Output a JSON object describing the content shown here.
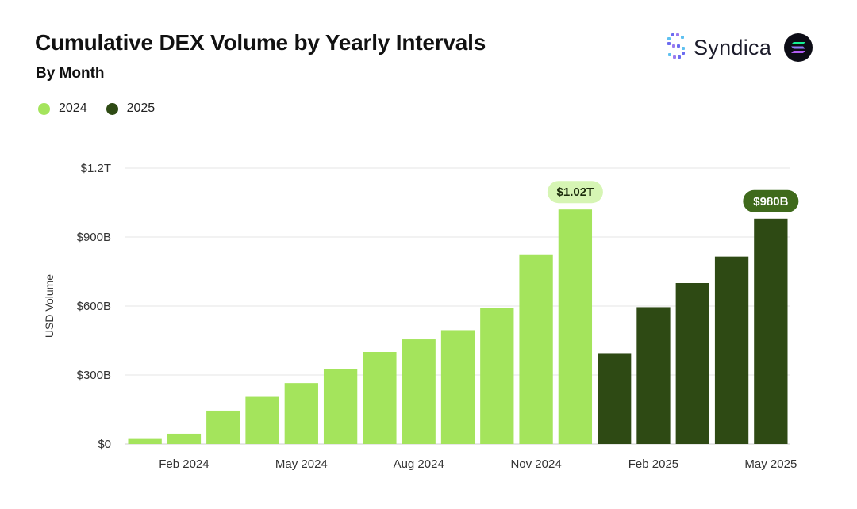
{
  "header": {
    "title": "Cumulative DEX Volume by Yearly Intervals",
    "subtitle": "By Month"
  },
  "brand": {
    "name": "Syndica",
    "logo_icon": "syndica-logo-icon",
    "badge_icon": "solana-icon"
  },
  "colors": {
    "series_2024": "#a4e45c",
    "series_2025": "#2e4a14",
    "badge_2024_bg": "#d6f5b4",
    "badge_2025_bg": "#3f6a1c",
    "grid": "#e6e6e6"
  },
  "chart_data": {
    "type": "bar",
    "title": "Cumulative DEX Volume by Yearly Intervals",
    "subtitle": "By Month",
    "ylabel": "USD Volume",
    "xlabel": "",
    "ylim": [
      0,
      1200
    ],
    "y_unit": "billions USD",
    "y_ticks": [
      {
        "value": 0,
        "label": "$0"
      },
      {
        "value": 300,
        "label": "$300B"
      },
      {
        "value": 600,
        "label": "$600B"
      },
      {
        "value": 900,
        "label": "$900B"
      },
      {
        "value": 1200,
        "label": "$1.2T"
      }
    ],
    "x_tick_labels": [
      {
        "index": 1,
        "label": "Feb 2024"
      },
      {
        "index": 4,
        "label": "May 2024"
      },
      {
        "index": 7,
        "label": "Aug 2024"
      },
      {
        "index": 10,
        "label": "Nov 2024"
      },
      {
        "index": 13,
        "label": "Feb 2025"
      },
      {
        "index": 16,
        "label": "May 2025"
      }
    ],
    "legend": [
      "2024",
      "2025"
    ],
    "legend_position": "top-left",
    "grid": "horizontal",
    "series": [
      {
        "name": "2024",
        "months": [
          "Jan 2024",
          "Feb 2024",
          "Mar 2024",
          "Apr 2024",
          "May 2024",
          "Jun 2024",
          "Jul 2024",
          "Aug 2024",
          "Sep 2024",
          "Oct 2024",
          "Nov 2024",
          "Dec 2024"
        ],
        "values": [
          22,
          45,
          145,
          205,
          265,
          325,
          400,
          455,
          495,
          590,
          825,
          1020
        ]
      },
      {
        "name": "2025",
        "months": [
          "Jan 2025",
          "Feb 2025",
          "Mar 2025",
          "Apr 2025",
          "May 2025"
        ],
        "values": [
          395,
          595,
          700,
          815,
          980
        ]
      }
    ],
    "annotations": [
      {
        "series": "2024",
        "index": 11,
        "label": "$1.02T"
      },
      {
        "series": "2025",
        "index": 4,
        "label": "$980B"
      }
    ]
  }
}
